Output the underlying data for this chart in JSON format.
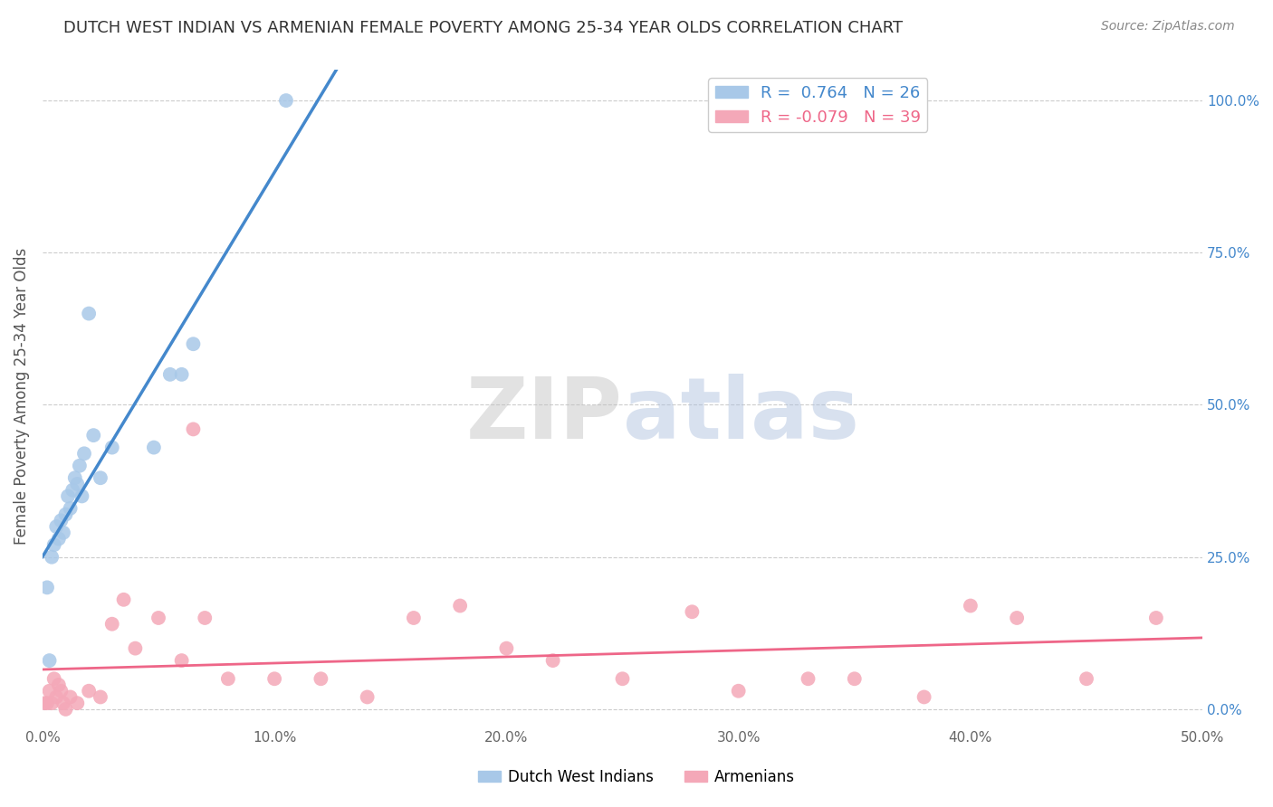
{
  "title": "DUTCH WEST INDIAN VS ARMENIAN FEMALE POVERTY AMONG 25-34 YEAR OLDS CORRELATION CHART",
  "source": "Source: ZipAtlas.com",
  "ylabel": "Female Poverty Among 25-34 Year Olds",
  "xlim": [
    0,
    50
  ],
  "ylim": [
    -2,
    105
  ],
  "y_ticks_right": [
    0,
    25,
    50,
    75,
    100
  ],
  "y_tick_labels_right": [
    "0.0%",
    "25.0%",
    "50.0%",
    "75.0%",
    "100.0%"
  ],
  "x_tick_vals": [
    0,
    10,
    20,
    30,
    40,
    50
  ],
  "x_tick_labels": [
    "0.0%",
    "10.0%",
    "20.0%",
    "30.0%",
    "40.0%",
    "50.0%"
  ],
  "grid_color": "#cccccc",
  "background_color": "#ffffff",
  "blue_R": 0.764,
  "blue_N": 26,
  "pink_R": -0.079,
  "pink_N": 39,
  "blue_color": "#a8c8e8",
  "pink_color": "#f4a8b8",
  "blue_line_color": "#4488cc",
  "pink_line_color": "#ee6688",
  "legend_label_blue": "Dutch West Indians",
  "legend_label_pink": "Armenians",
  "dutch_x": [
    0.2,
    0.3,
    0.4,
    0.5,
    0.6,
    0.7,
    0.8,
    0.9,
    1.0,
    1.1,
    1.2,
    1.3,
    1.4,
    1.5,
    1.6,
    1.7,
    1.8,
    2.0,
    2.2,
    2.5,
    3.0,
    4.8,
    5.5,
    6.0,
    6.5,
    10.5
  ],
  "dutch_y": [
    20,
    8,
    25,
    27,
    30,
    28,
    31,
    29,
    32,
    35,
    33,
    36,
    38,
    37,
    40,
    35,
    42,
    65,
    45,
    38,
    43,
    43,
    55,
    55,
    60,
    100
  ],
  "armenian_x": [
    0.1,
    0.2,
    0.3,
    0.4,
    0.5,
    0.6,
    0.7,
    0.8,
    0.9,
    1.0,
    1.2,
    1.5,
    2.0,
    2.5,
    3.0,
    3.5,
    4.0,
    5.0,
    6.0,
    6.5,
    7.0,
    8.0,
    10.0,
    12.0,
    14.0,
    16.0,
    18.0,
    20.0,
    22.0,
    25.0,
    28.0,
    30.0,
    33.0,
    35.0,
    38.0,
    40.0,
    42.0,
    45.0,
    48.0
  ],
  "armenian_y": [
    1,
    1,
    3,
    1,
    5,
    2,
    4,
    3,
    1,
    0,
    2,
    1,
    3,
    2,
    14,
    18,
    10,
    15,
    8,
    46,
    15,
    5,
    5,
    5,
    2,
    15,
    17,
    10,
    8,
    5,
    16,
    3,
    5,
    5,
    2,
    17,
    15,
    5,
    15
  ]
}
